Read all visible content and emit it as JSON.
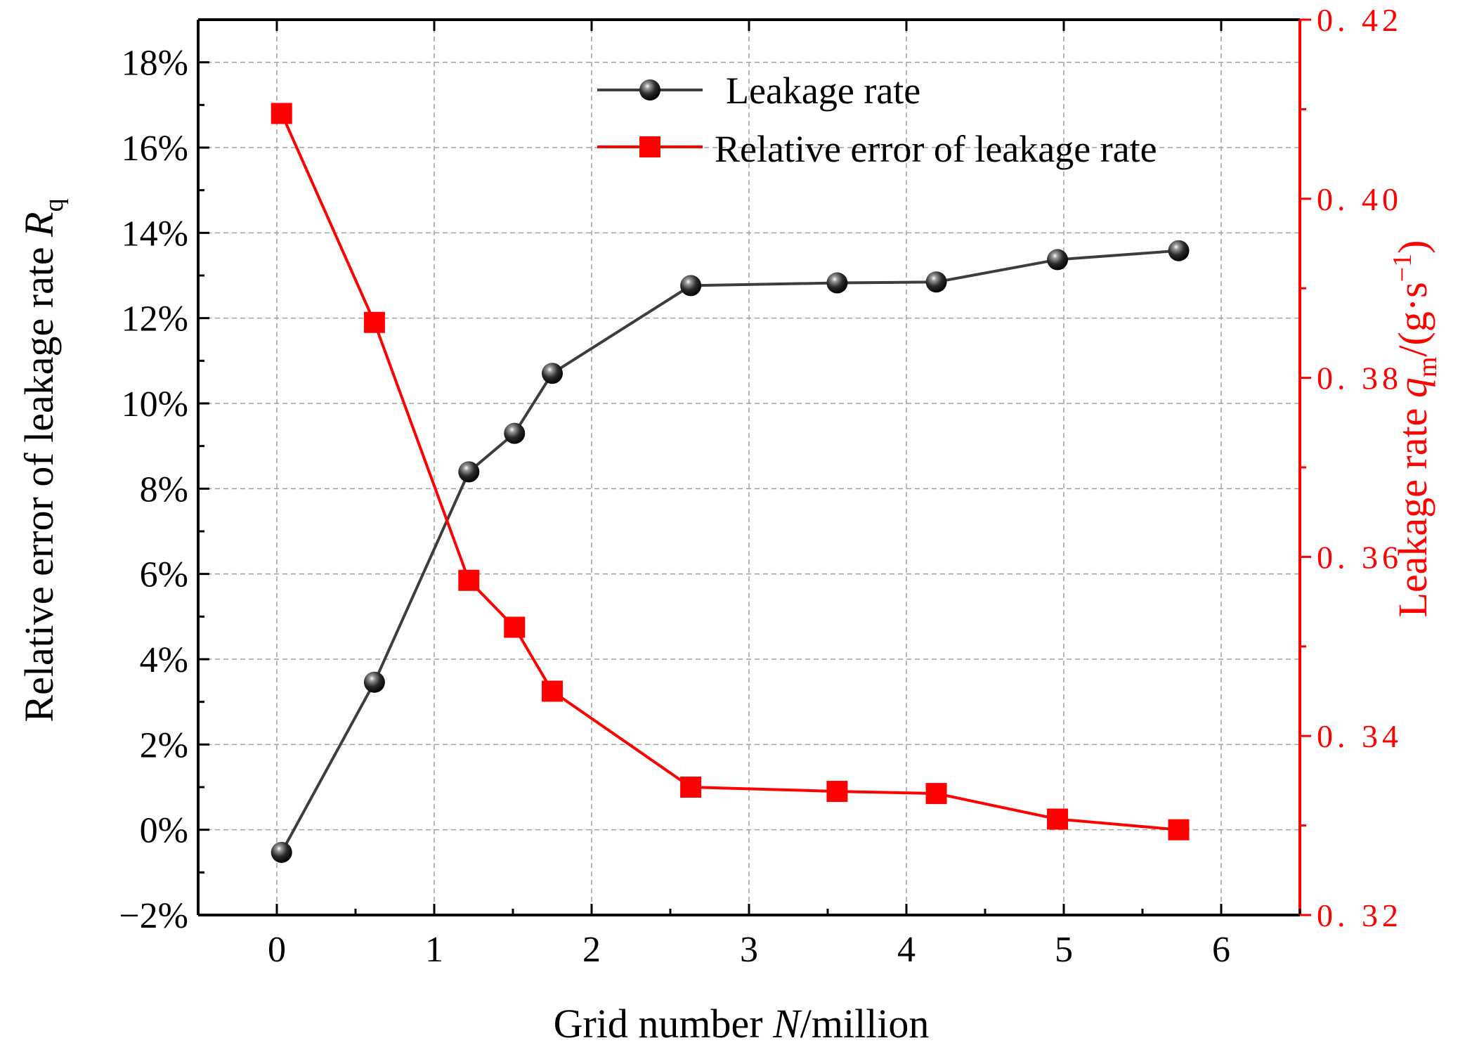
{
  "colors": {
    "leakage_series": "#3d3d3d",
    "error_series": "#ff0000",
    "grid": "#a0a0a0",
    "axis": "#000000",
    "right_axis": "#ff0000"
  },
  "chart_data": {
    "type": "line",
    "x": [
      0.03,
      0.62,
      1.22,
      1.51,
      1.75,
      2.63,
      3.56,
      4.19,
      4.96,
      5.73
    ],
    "series": [
      {
        "name": "Leakage rate",
        "axis": "right",
        "marker": "sphere",
        "values": [
          0.327,
          0.346,
          0.3695,
          0.3738,
          0.3805,
          0.3903,
          0.3906,
          0.3907,
          0.3932,
          0.3942
        ]
      },
      {
        "name": "Relative error of leakage rate",
        "axis": "left",
        "marker": "square",
        "values": [
          16.8,
          11.9,
          5.85,
          4.75,
          3.25,
          1.0,
          0.9,
          0.85,
          0.25,
          0.0
        ]
      }
    ],
    "xlabel_prefix": "Grid number ",
    "xlabel_var": "N",
    "xlabel_suffix": "/million",
    "ylabel_left_main": "Relative error of leakage rate ",
    "ylabel_left_var": "R",
    "ylabel_left_sub": "q",
    "ylabel_right_main": "Leakage rate ",
    "ylabel_right_var": "q",
    "ylabel_right_sub": "m",
    "ylabel_right_unit": "/(g·s",
    "ylabel_right_exp": "−1",
    "ylabel_right_close": ")",
    "xlim": [
      -0.5,
      6.5
    ],
    "ylim_left": [
      -2,
      19
    ],
    "ylim_right": [
      0.32,
      0.42
    ],
    "x_ticks": [
      0,
      1,
      2,
      3,
      4,
      5,
      6
    ],
    "x_tick_labels": [
      "0",
      "1",
      "2",
      "3",
      "4",
      "5",
      "6"
    ],
    "y_left_ticks": [
      -2,
      0,
      2,
      4,
      6,
      8,
      10,
      12,
      14,
      16,
      18
    ],
    "y_left_tick_labels": [
      "−2%",
      "0%",
      "2%",
      "4%",
      "6%",
      "8%",
      "10%",
      "12%",
      "14%",
      "16%",
      "18%"
    ],
    "y_right_ticks": [
      0.32,
      0.34,
      0.36,
      0.38,
      0.4,
      0.42
    ],
    "y_right_tick_labels": [
      "0. 32",
      "0. 34",
      "0. 36",
      "0. 38",
      "0. 40",
      "0. 42"
    ],
    "grid": true,
    "legend_position": "top-center",
    "legend": [
      "Leakage rate",
      "Relative error of leakage rate"
    ]
  }
}
